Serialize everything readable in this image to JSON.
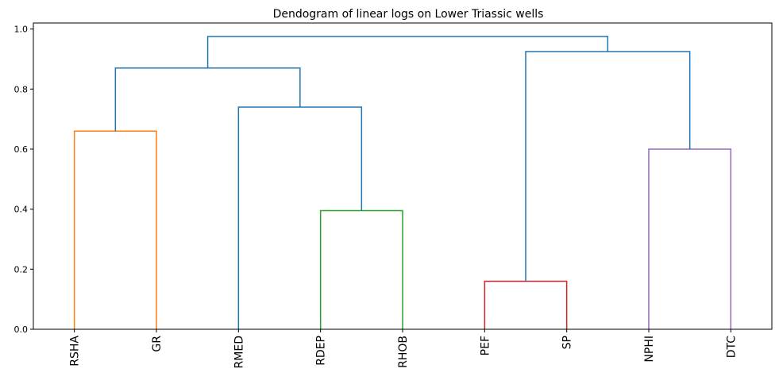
{
  "chart_data": {
    "type": "dendrogram",
    "title": "Dendogram of linear logs on Lower Triassic wells",
    "xlabel": "",
    "ylabel": "",
    "ylim": [
      0,
      1.02
    ],
    "yticks": [
      0.0,
      0.2,
      0.4,
      0.6,
      0.8,
      1.0
    ],
    "ytick_labels": [
      "0.0",
      "0.2",
      "0.4",
      "0.6",
      "0.8",
      "1.0"
    ],
    "grid": false,
    "legend": "none",
    "leaves": [
      "RSHA",
      "GR",
      "RMED",
      "RDEP",
      "RHOB",
      "PEF",
      "SP",
      "NPHI",
      "DTC"
    ],
    "colors": {
      "above_threshold": "#1f77b4",
      "cluster_1": "#ff7f0e",
      "cluster_2": "#2ca02c",
      "cluster_3": "#d62728",
      "cluster_4": "#9467bd"
    },
    "merges": [
      {
        "left": "RSHA",
        "right": "GR",
        "height": 0.66,
        "color": "cluster_1"
      },
      {
        "left": "RDEP",
        "right": "RHOB",
        "height": 0.395,
        "color": "cluster_2"
      },
      {
        "left": "PEF",
        "right": "SP",
        "height": 0.16,
        "color": "cluster_3"
      },
      {
        "left": "NPHI",
        "right": "DTC",
        "height": 0.6,
        "color": "cluster_4"
      },
      {
        "left": "RMED",
        "right": "RDEP+RHOB",
        "height": 0.74,
        "color": "above_threshold"
      },
      {
        "left": "RSHA+GR",
        "right": "RMED+RDEP+RHOB",
        "height": 0.87,
        "color": "above_threshold"
      },
      {
        "left": "PEF+SP",
        "right": "NPHI+DTC",
        "height": 0.925,
        "color": "above_threshold"
      },
      {
        "left": "RSHA..RHOB",
        "right": "PEF..DTC",
        "height": 0.975,
        "color": "above_threshold"
      }
    ]
  }
}
